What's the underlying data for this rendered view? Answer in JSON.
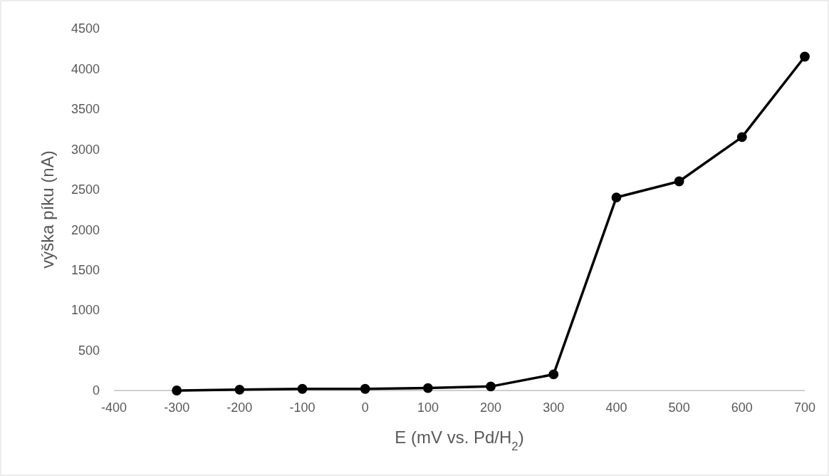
{
  "chart_data": {
    "type": "line",
    "xlabel": "E (mV vs. Pd/H$_{2}$)",
    "ylabel": "výška píku (nA)",
    "x": [
      -300,
      -200,
      -100,
      0,
      100,
      200,
      300,
      400,
      500,
      600,
      700
    ],
    "series": [
      {
        "color": "#000000",
        "values": [
          0,
          10,
          20,
          20,
          30,
          50,
          200,
          2400,
          2600,
          3150,
          4150
        ]
      }
    ],
    "xlim": [
      -400,
      700
    ],
    "xticks": [
      -400,
      -300,
      -200,
      -100,
      0,
      100,
      200,
      300,
      400,
      500,
      600,
      700
    ],
    "ylim": [
      0,
      4500
    ],
    "yticks": [
      0,
      500,
      1000,
      1500,
      2000,
      2500,
      3000,
      3500,
      4000,
      4500
    ],
    "marker": "circle",
    "line_style": "solid"
  }
}
